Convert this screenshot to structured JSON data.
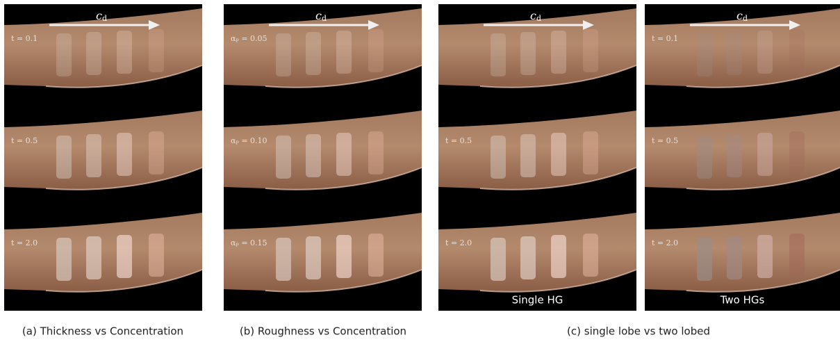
{
  "panels": [
    {
      "arrow_label": {
        "main": "c",
        "sub": "d"
      },
      "rows": [
        {
          "label": "t = 0.1"
        },
        {
          "label": "t = 0.5"
        },
        {
          "label": "t = 2.0"
        }
      ]
    },
    {
      "arrow_label": {
        "main": "c",
        "sub": "d"
      },
      "rows": [
        {
          "label": "αₚ = 0.05"
        },
        {
          "label": "αₚ = 0.10"
        },
        {
          "label": "αₚ = 0.15"
        }
      ]
    },
    {
      "arrow_label": {
        "main": "c",
        "sub": "d"
      },
      "rows": [
        {
          "label": null
        },
        {
          "label": "t = 0.5"
        },
        {
          "label": "t = 2.0"
        }
      ],
      "overlay": "Single HG"
    },
    {
      "arrow_label": {
        "main": "c",
        "sub": "d"
      },
      "rows": [
        {
          "label": "t = 0.1"
        },
        {
          "label": "t = 0.5"
        },
        {
          "label": "t = 2.0"
        }
      ],
      "overlay": "Two HGs"
    }
  ],
  "captions": [
    "(a) Thickness vs Concentration",
    "(b) Roughness vs Concentration",
    "(c) single lobe vs two lobed"
  ]
}
